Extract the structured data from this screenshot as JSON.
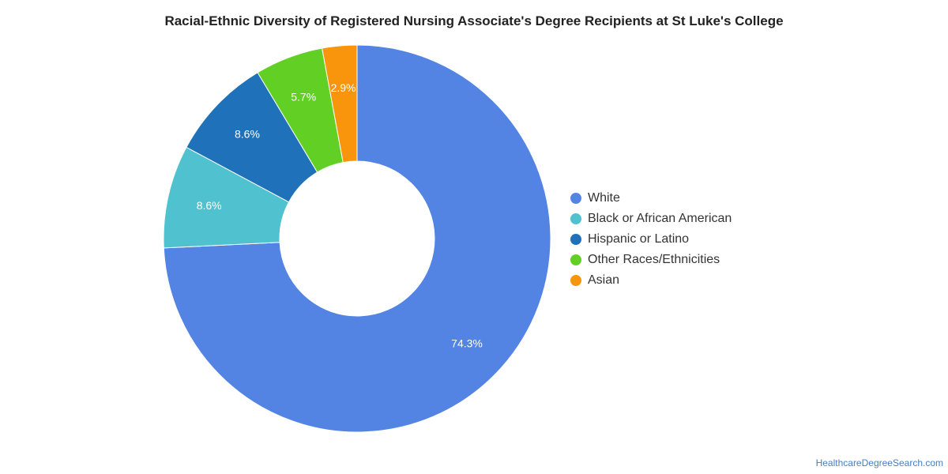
{
  "chart_data": {
    "type": "pie",
    "donut": true,
    "title": "Racial-Ethnic Diversity of Registered Nursing Associate's Degree Recipients at St Luke's College",
    "unit": "%",
    "legend_position": "right",
    "slices": [
      {
        "label": "White",
        "value": 74.3,
        "display": "74.3%",
        "color": "#5384e3"
      },
      {
        "label": "Black or African American",
        "value": 8.6,
        "display": "8.6%",
        "color": "#50c1ce"
      },
      {
        "label": "Hispanic or Latino",
        "value": 8.6,
        "display": "8.6%",
        "color": "#1f72b9"
      },
      {
        "label": "Other Races/Ethnicities",
        "value": 5.7,
        "display": "5.7%",
        "color": "#62cf24"
      },
      {
        "label": "Asian",
        "value": 2.9,
        "display": "2.9%",
        "color": "#f8950c"
      }
    ]
  },
  "footer": {
    "credit": "HealthcareDegreeSearch.com"
  }
}
